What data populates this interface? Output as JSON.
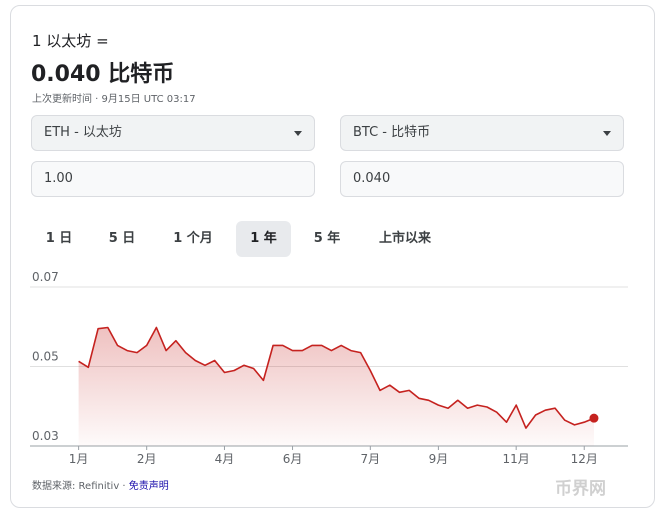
{
  "header": {
    "amount": "1 以太坊 =",
    "result": "0.040 比特币",
    "updated": "上次更新时间 · 9月15日 UTC 03:17"
  },
  "converter": {
    "from_currency": "ETH - 以太坊",
    "to_currency": "BTC - 比特币",
    "from_value": "1.00",
    "to_value": "0.040"
  },
  "tabs": {
    "items": [
      "1 日",
      "5 日",
      "1 个月",
      "1 年",
      "5 年",
      "上市以来"
    ],
    "selected": "1 年"
  },
  "chart_data": {
    "type": "line",
    "series": [
      {
        "name": "ETH/BTC",
        "color": "#c5221f",
        "values": [
          0.0513,
          0.0498,
          0.0595,
          0.0598,
          0.0553,
          0.054,
          0.0535,
          0.0553,
          0.0598,
          0.054,
          0.0565,
          0.0535,
          0.0515,
          0.0503,
          0.0515,
          0.0485,
          0.049,
          0.0503,
          0.0495,
          0.0465,
          0.0553,
          0.0553,
          0.054,
          0.054,
          0.0553,
          0.0553,
          0.054,
          0.0553,
          0.054,
          0.0535,
          0.049,
          0.044,
          0.0453,
          0.0435,
          0.044,
          0.042,
          0.0415,
          0.0403,
          0.0395,
          0.0415,
          0.0395,
          0.0403,
          0.0398,
          0.0385,
          0.036,
          0.0403,
          0.0345,
          0.0378,
          0.039,
          0.0395,
          0.0365,
          0.0353,
          0.036,
          0.037
        ]
      }
    ],
    "xlim": [
      -5,
      56.5
    ],
    "xticks": [
      {
        "value": 0,
        "label": "1月"
      },
      {
        "value": 7,
        "label": "2月"
      },
      {
        "value": 15,
        "label": "4月"
      },
      {
        "value": 22,
        "label": "6月"
      },
      {
        "value": 30,
        "label": "7月"
      },
      {
        "value": 37,
        "label": "9月"
      },
      {
        "value": 45,
        "label": "11月"
      },
      {
        "value": 52,
        "label": "12月"
      }
    ],
    "ylim": [
      0.03,
      0.07
    ],
    "yticks": [
      0.03,
      0.05,
      0.07
    ],
    "grid": true
  },
  "footer": {
    "source": "数据来源: Refinitiv",
    "separator": "·",
    "disclaimer": "免责声明"
  },
  "watermark": "币界网"
}
